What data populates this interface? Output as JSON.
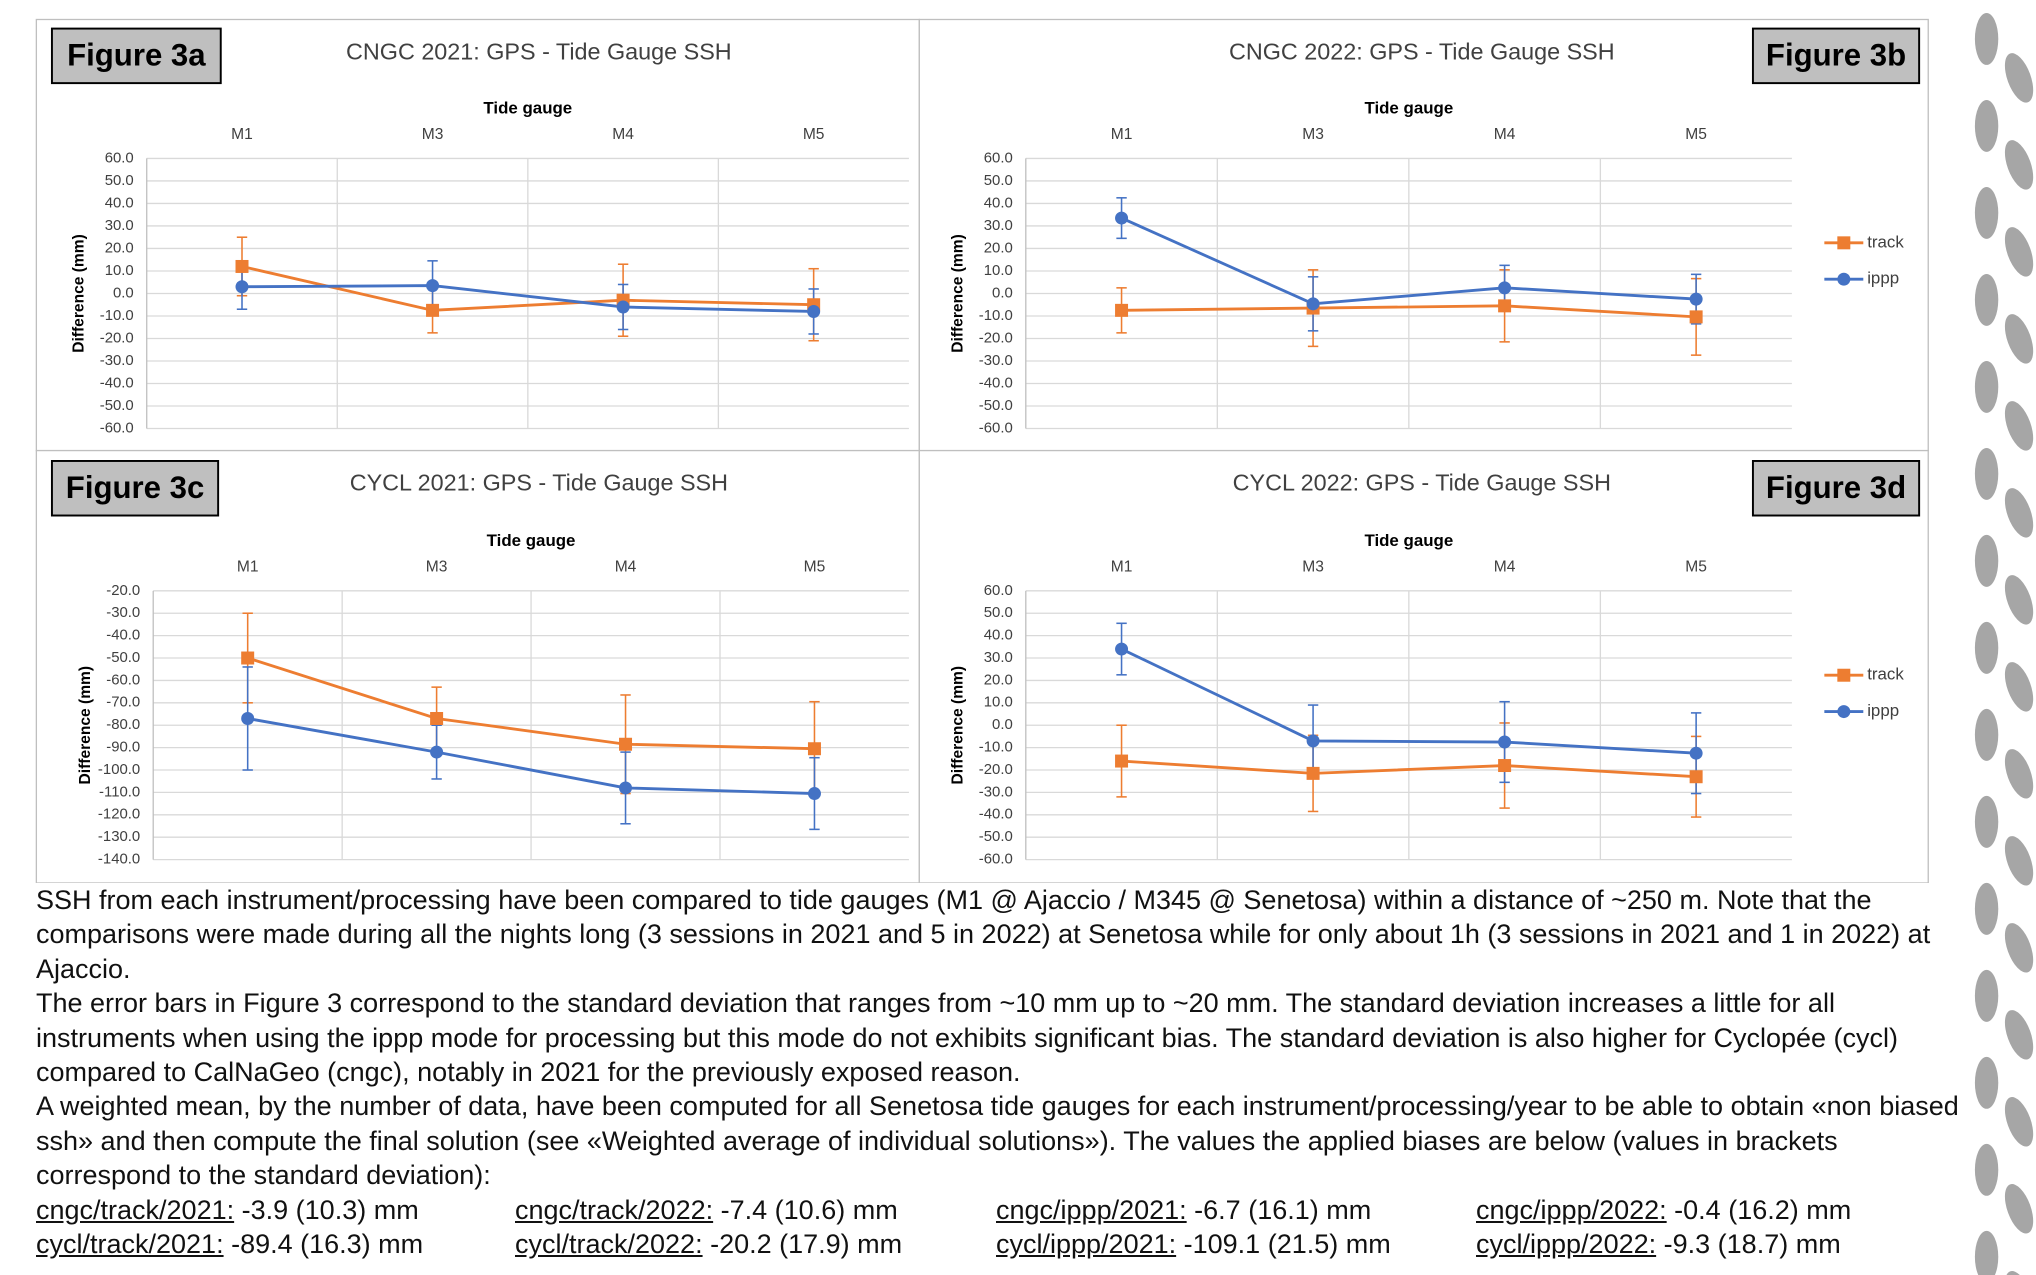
{
  "chart_data": [
    {
      "type": "line",
      "panel_label": "Figure 3a",
      "title": "CNGC 2021: GPS - Tide Gauge SSH",
      "xlabel": "Tide gauge",
      "ylabel": "Difference (mm)",
      "categories": [
        "M1",
        "M3",
        "M4",
        "M5"
      ],
      "series": [
        {
          "name": "track",
          "color": "#ed7d31",
          "marker": "square",
          "values": [
            12,
            -7.5,
            -3,
            -5
          ],
          "errors": [
            13,
            10,
            16,
            16
          ]
        },
        {
          "name": "ippp",
          "color": "#4472c4",
          "marker": "circle",
          "values": [
            3,
            3.5,
            -6,
            -8
          ],
          "errors": [
            10,
            11,
            10,
            10
          ]
        }
      ],
      "ylim": [
        -60,
        60
      ],
      "yticks": [
        {
          "value": -60,
          "label": "-60.0"
        },
        {
          "value": -50,
          "label": "-50.0"
        },
        {
          "value": -40,
          "label": "-40.0"
        },
        {
          "value": -30,
          "label": "-30.0"
        },
        {
          "value": -20,
          "label": "-20.0"
        },
        {
          "value": -10,
          "label": "-10.0"
        },
        {
          "value": 0,
          "label": "0.0"
        },
        {
          "value": 10,
          "label": "10.0"
        },
        {
          "value": 20,
          "label": "20.0"
        },
        {
          "value": 30,
          "label": "30.0"
        },
        {
          "value": 40,
          "label": "40.0"
        },
        {
          "value": 50,
          "label": "50.0"
        },
        {
          "value": 60,
          "label": "60.0"
        }
      ],
      "grid": true
    },
    {
      "type": "line",
      "panel_label": "Figure 3b",
      "title": "CNGC 2022: GPS - Tide Gauge SSH",
      "xlabel": "Tide gauge",
      "ylabel": "Difference (mm)",
      "categories": [
        "M1",
        "M3",
        "M4",
        "M5"
      ],
      "series": [
        {
          "name": "track",
          "color": "#ed7d31",
          "marker": "square",
          "values": [
            -7.5,
            -6.5,
            -5.5,
            -10.4
          ],
          "errors": [
            10,
            17,
            16,
            17
          ]
        },
        {
          "name": "ippp",
          "color": "#4472c4",
          "marker": "circle",
          "values": [
            33.5,
            -4.6,
            2.5,
            -2.5
          ],
          "errors": [
            9,
            12,
            10,
            11
          ]
        }
      ],
      "ylim": [
        -60,
        60
      ],
      "yticks": [
        {
          "value": -60,
          "label": "-60.0"
        },
        {
          "value": -50,
          "label": "-50.0"
        },
        {
          "value": -40,
          "label": "-40.0"
        },
        {
          "value": -30,
          "label": "-30.0"
        },
        {
          "value": -20,
          "label": "-20.0"
        },
        {
          "value": -10,
          "label": "-10.0"
        },
        {
          "value": 0,
          "label": "0.0"
        },
        {
          "value": 10,
          "label": "10.0"
        },
        {
          "value": 20,
          "label": "20.0"
        },
        {
          "value": 30,
          "label": "30.0"
        },
        {
          "value": 40,
          "label": "40.0"
        },
        {
          "value": 50,
          "label": "50.0"
        },
        {
          "value": 60,
          "label": "60.0"
        }
      ],
      "grid": true,
      "legend": "right"
    },
    {
      "type": "line",
      "panel_label": "Figure 3c",
      "title": "CYCL 2021: GPS - Tide Gauge SSH",
      "xlabel": "Tide gauge",
      "ylabel": "Difference (mm)",
      "categories": [
        "M1",
        "M3",
        "M4",
        "M5"
      ],
      "series": [
        {
          "name": "track",
          "color": "#ed7d31",
          "marker": "square",
          "values": [
            -50,
            -77,
            -88.5,
            -90.5
          ],
          "errors": [
            20,
            14,
            22,
            21
          ]
        },
        {
          "name": "ippp",
          "color": "#4472c4",
          "marker": "circle",
          "values": [
            -77,
            -92,
            -108,
            -110.5
          ],
          "errors": [
            23,
            12,
            16,
            16
          ]
        }
      ],
      "ylim": [
        -140,
        -20
      ],
      "yticks": [
        {
          "value": -140,
          "label": "-140.0"
        },
        {
          "value": -130,
          "label": "-130.0"
        },
        {
          "value": -120,
          "label": "-120.0"
        },
        {
          "value": -110,
          "label": "-110.0"
        },
        {
          "value": -100,
          "label": "-100.0"
        },
        {
          "value": -90,
          "label": "-90.0"
        },
        {
          "value": -80,
          "label": "-80.0"
        },
        {
          "value": -70,
          "label": "-70.0"
        },
        {
          "value": -60,
          "label": "-60.0"
        },
        {
          "value": -50,
          "label": "-50.0"
        },
        {
          "value": -40,
          "label": "-40.0"
        },
        {
          "value": -30,
          "label": "-30.0"
        },
        {
          "value": -20,
          "label": "-20.0"
        }
      ],
      "grid": true
    },
    {
      "type": "line",
      "panel_label": "Figure 3d",
      "title": "CYCL 2022: GPS - Tide Gauge SSH",
      "xlabel": "Tide gauge",
      "ylabel": "Difference (mm)",
      "categories": [
        "M1",
        "M3",
        "M4",
        "M5"
      ],
      "series": [
        {
          "name": "track",
          "color": "#ed7d31",
          "marker": "square",
          "values": [
            -16,
            -21.5,
            -18,
            -23
          ],
          "errors": [
            16,
            17,
            19,
            18
          ]
        },
        {
          "name": "ippp",
          "color": "#4472c4",
          "marker": "circle",
          "values": [
            34,
            -7,
            -7.5,
            -12.5
          ],
          "errors": [
            11.5,
            16,
            18,
            18
          ]
        }
      ],
      "ylim": [
        -60,
        60
      ],
      "yticks": [
        {
          "value": -60,
          "label": "-60.0"
        },
        {
          "value": -50,
          "label": "-50.0"
        },
        {
          "value": -40,
          "label": "-40.0"
        },
        {
          "value": -30,
          "label": "-30.0"
        },
        {
          "value": -20,
          "label": "-20.0"
        },
        {
          "value": -10,
          "label": "-10.0"
        },
        {
          "value": 0,
          "label": "0.0"
        },
        {
          "value": 10,
          "label": "10.0"
        },
        {
          "value": 20,
          "label": "20.0"
        },
        {
          "value": 30,
          "label": "30.0"
        },
        {
          "value": 40,
          "label": "40.0"
        },
        {
          "value": 50,
          "label": "50.0"
        },
        {
          "value": 60,
          "label": "60.0"
        }
      ],
      "grid": true,
      "legend": "right"
    }
  ],
  "document": {
    "paragraphs": [
      "SSH from each instrument/processing have been compared to tide gauges (M1 @ Ajaccio / M345 @ Senetosa) within a distance of ~250 m. Note that the comparisons were made during all the nights long (3 sessions in 2021 and 5 in 2022) at Senetosa while for only about 1h (3 sessions in 2021 and 1 in 2022) at Ajaccio.",
      "The error bars in Figure 3 correspond to the standard deviation that ranges from ~10 mm up to ~20 mm. The standard deviation increases a little for all instruments when using the ippp mode for processing but this mode do not exhibits significant bias. The standard deviation is also higher for Cyclopée (cycl) compared to CalNaGeo (cngc), notably in 2021 for the previously exposed reason.",
      "A weighted mean, by the number of data, have been computed for all Senetosa tide gauges for each instrument/processing/year to be able to obtain «non biased ssh» and then compute the final solution (see «Weighted average of individual solutions»). The values the applied biases are below (values in brackets correspond to the standard deviation):"
    ],
    "biases": [
      {
        "label": "cngc/track/2021:",
        "value": "-3.9 (10.3) mm"
      },
      {
        "label": "cngc/track/2022:",
        "value": "-7.4 (10.6) mm"
      },
      {
        "label": "cngc/ippp/2021:",
        "value": "-6.7 (16.1) mm"
      },
      {
        "label": "cngc/ippp/2022:",
        "value": "-0.4 (16.2) mm"
      },
      {
        "label": "cycl/track/2021:",
        "value": "-89.4 (16.3) mm"
      },
      {
        "label": "cycl/track/2022:",
        "value": "-20.2 (17.9) mm"
      },
      {
        "label": "cycl/ippp/2021:",
        "value": "-109.1 (21.5) mm"
      },
      {
        "label": "cycl/ippp/2022:",
        "value": "-9.3 (18.7) mm"
      }
    ]
  }
}
